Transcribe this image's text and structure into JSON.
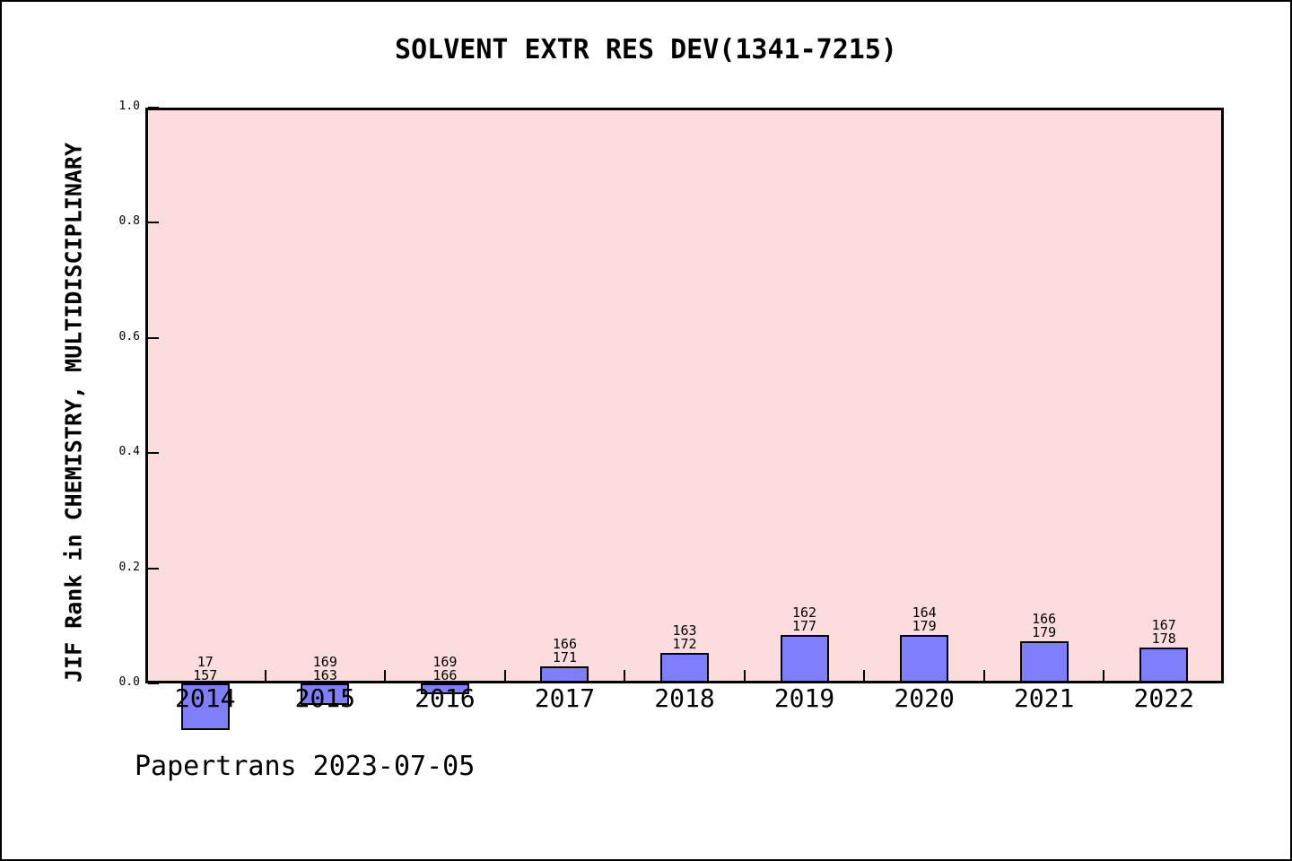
{
  "window": {
    "background": "#ffffff",
    "frame_color": "#000000"
  },
  "chart_data": {
    "type": "bar",
    "title": "SOLVENT EXTR RES DEV(1341-7215)",
    "ylabel": "JIF Rank in CHEMISTRY, MULTIDISCIPLINARY",
    "xlabel": "",
    "categories": [
      "2014",
      "2015",
      "2016",
      "2017",
      "2018",
      "2019",
      "2020",
      "2021",
      "2022"
    ],
    "values": [
      -0.081,
      -0.0368,
      -0.0181,
      0.0292,
      0.0523,
      0.0847,
      0.0838,
      0.0726,
      0.0618
    ],
    "bar_labels": [
      [
        "17",
        "157"
      ],
      [
        "169",
        "163"
      ],
      [
        "169",
        "166"
      ],
      [
        "166",
        "171"
      ],
      [
        "163",
        "172"
      ],
      [
        "162",
        "177"
      ],
      [
        "164",
        "179"
      ],
      [
        "166",
        "179"
      ],
      [
        "167",
        "178"
      ]
    ],
    "yticks": [
      0.0,
      0.2,
      0.4,
      0.6,
      0.8,
      1.0
    ],
    "ytick_labels": [
      "0.0",
      "0.2",
      "0.4",
      "0.6",
      "0.8",
      "1.0"
    ],
    "ylim": [
      0,
      1
    ],
    "grid": false,
    "legend": "none",
    "plot_background": "#fcdcdc",
    "bar_fill": "#7f7ffc",
    "bar_edge": "#000000",
    "axis_color": "#000000"
  },
  "footer": {
    "text": "Papertrans 2023-07-05"
  }
}
